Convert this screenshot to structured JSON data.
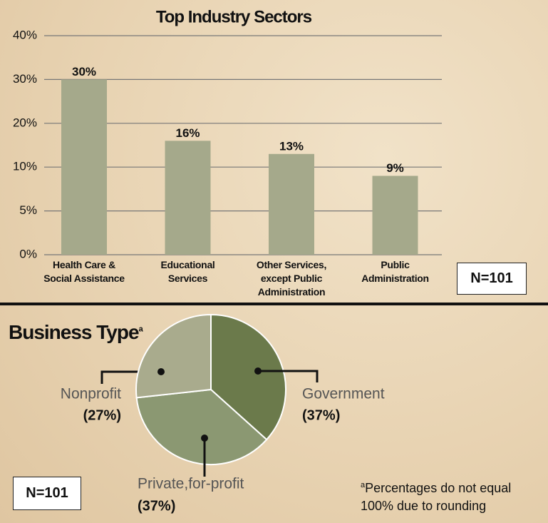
{
  "chart_data": [
    {
      "type": "bar",
      "title": "Top Industry Sectors",
      "categories": [
        "Health Care &\nSocial Assistance",
        "Educational\nServices",
        "Other Services,\nexcept Public\nAdministration",
        "Public\nAdministration"
      ],
      "values": [
        30,
        16,
        13,
        9
      ],
      "value_labels": [
        "30%",
        "16%",
        "13%",
        "9%"
      ],
      "color": "#a5a98b",
      "ylim": [
        0,
        40
      ],
      "yticks": [
        {
          "value": 0,
          "label": "0%"
        },
        {
          "value": 5,
          "label": "5%"
        },
        {
          "value": 10,
          "label": "10%"
        },
        {
          "value": 20,
          "label": "20%"
        },
        {
          "value": 30,
          "label": "30%"
        },
        {
          "value": 40,
          "label": "40%"
        }
      ],
      "grid": true,
      "annotation": "N=101"
    },
    {
      "type": "pie",
      "title": "Business Type",
      "title_superscript": "a",
      "categories": [
        "Government",
        "Private,for-profit",
        "Nonprofit"
      ],
      "values": [
        37,
        37,
        27
      ],
      "value_labels": [
        "(37%)",
        "(37%)",
        "(27%)"
      ],
      "colors": [
        "#6b7a4b",
        "#8b9872",
        "#a9ab8d"
      ],
      "annotation": "N=101",
      "footnote_marker": "a",
      "footnote": "Percentages do not equal 100% due to rounding"
    }
  ]
}
